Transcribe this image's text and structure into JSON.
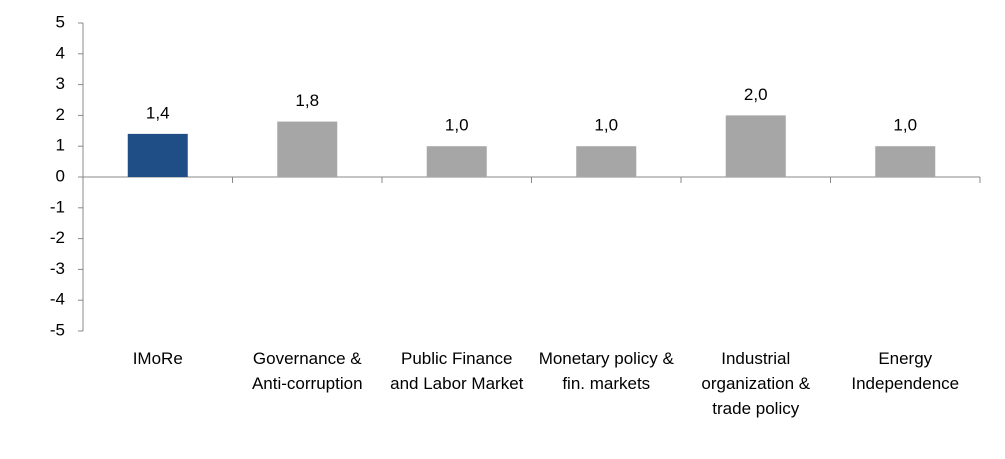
{
  "chart_data": {
    "type": "bar",
    "categories": [
      "IMoRe",
      "Governance & Anti-corruption",
      "Public Finance and Labor Market",
      "Monetary policy & fin. markets",
      "Industrial organization & trade policy",
      "Energy Independence"
    ],
    "values": [
      1.4,
      1.8,
      1.0,
      1.0,
      2.0,
      1.0
    ],
    "value_labels": [
      "1,4",
      "1,8",
      "1,0",
      "1,0",
      "2,0",
      "1,0"
    ],
    "colors": [
      "#1f4e87",
      "#a6a6a6",
      "#a6a6a6",
      "#a6a6a6",
      "#a6a6a6",
      "#a6a6a6"
    ],
    "ylim": [
      -5,
      5
    ],
    "yticks": [
      -5,
      -4,
      -3,
      -2,
      -1,
      0,
      1,
      2,
      3,
      4,
      5
    ],
    "grid": false
  }
}
